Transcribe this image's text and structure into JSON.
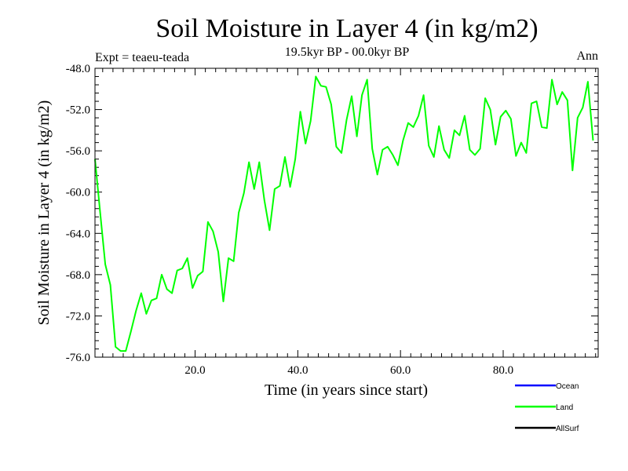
{
  "chart_data": {
    "type": "line",
    "title": "Soil Moisture in Layer 4 (in kg/m2)",
    "subtitle": "19.5kyr BP - 00.0kyr BP",
    "left_note": "Expt = teaeu-teada",
    "right_note": "Ann",
    "xlabel": "Time (in years since start)",
    "ylabel": "Soil Moisture in Layer 4 (in kg/m2)",
    "xlim": [
      0.5,
      98.5
    ],
    "ylim": [
      -76.0,
      -48.0
    ],
    "x_ticks": [
      20,
      40,
      60,
      80
    ],
    "x_tick_labels": [
      "20.0",
      "40.0",
      "60.0",
      "80.0"
    ],
    "y_ticks": [
      -76,
      -72,
      -68,
      -64,
      -60,
      -56,
      -52,
      -48
    ],
    "y_tick_labels": [
      "-76.0",
      "-72.0",
      "-68.0",
      "-64.0",
      "-60.0",
      "-56.0",
      "-52.0",
      "-48.0"
    ],
    "legend": [
      {
        "name": "Ocean",
        "color": "#0000ff"
      },
      {
        "name": "Land",
        "color": "#00ff00"
      },
      {
        "name": "AllSurf",
        "color": "#000000"
      }
    ],
    "series": [
      {
        "name": "Land",
        "color": "#00ff00",
        "x_start": 0.5,
        "x_step": 1,
        "values": [
          -56.8,
          -61.9,
          -67.0,
          -69.0,
          -75.0,
          -75.4,
          -75.4,
          -73.5,
          -71.5,
          -69.8,
          -71.8,
          -70.5,
          -70.3,
          -68.0,
          -69.4,
          -69.8,
          -67.6,
          -67.4,
          -66.4,
          -69.3,
          -68.1,
          -67.7,
          -62.9,
          -63.8,
          -65.8,
          -70.6,
          -66.4,
          -66.7,
          -62.0,
          -60.1,
          -57.1,
          -59.7,
          -57.1,
          -60.8,
          -63.7,
          -59.7,
          -59.4,
          -56.6,
          -59.5,
          -56.8,
          -52.2,
          -55.3,
          -53.1,
          -48.8,
          -49.7,
          -49.8,
          -51.5,
          -55.6,
          -56.2,
          -53.0,
          -50.7,
          -54.6,
          -50.6,
          -49.1,
          -55.8,
          -58.3,
          -55.9,
          -55.6,
          -56.4,
          -57.4,
          -55.0,
          -53.3,
          -53.7,
          -52.6,
          -50.6,
          -55.5,
          -56.6,
          -53.6,
          -55.9,
          -56.7,
          -54.0,
          -54.5,
          -52.6,
          -55.9,
          -56.4,
          -55.8,
          -50.9,
          -52.0,
          -55.4,
          -52.7,
          -52.1,
          -52.9,
          -56.5,
          -55.2,
          -56.2,
          -51.4,
          -51.2,
          -53.7,
          -53.8,
          -49.1,
          -51.5,
          -50.3,
          -51.1,
          -57.9,
          -52.8,
          -51.8,
          -49.3,
          -55.0
        ]
      }
    ]
  }
}
